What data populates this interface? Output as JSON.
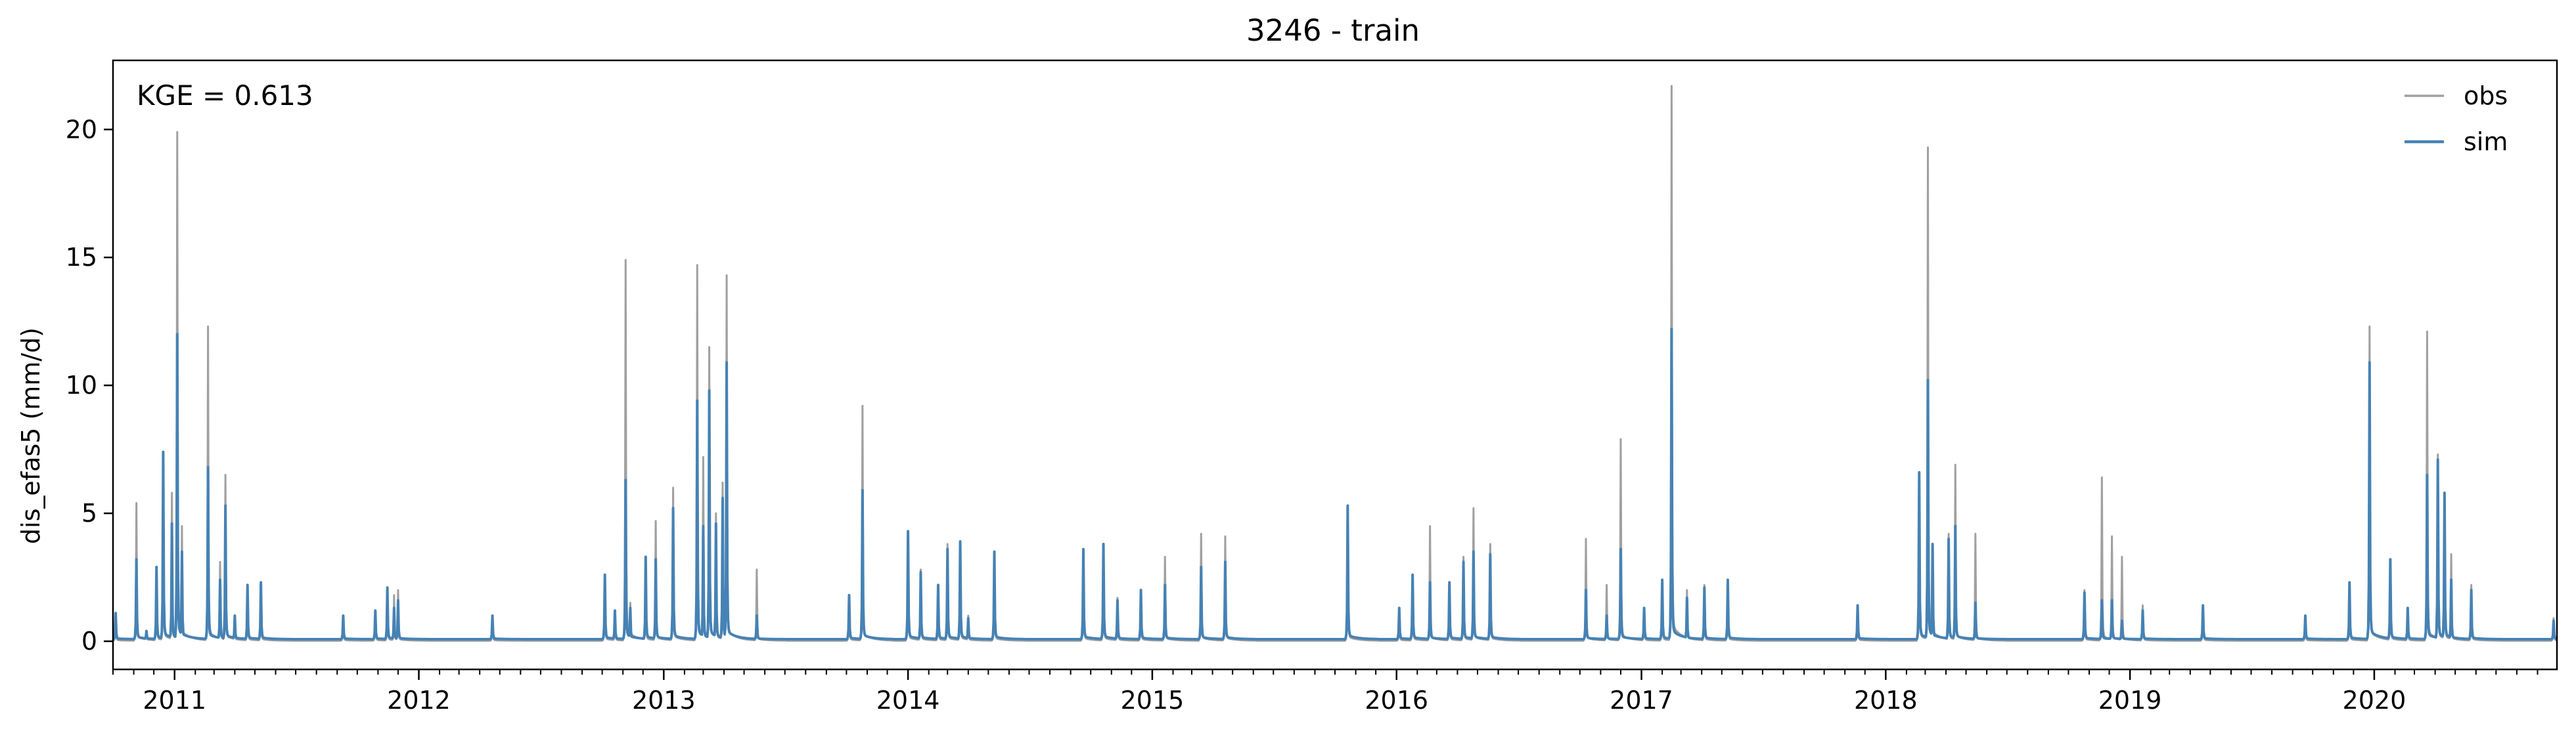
{
  "chart_data": {
    "type": "line",
    "title": "3246 - train",
    "xlabel": "",
    "ylabel": "dis_efas5 (mm/d)",
    "annotation": "KGE = 0.613",
    "x_range": [
      "2010-10-01",
      "2020-09-30"
    ],
    "ylim": [
      -1.1,
      22.7
    ],
    "yticks": [
      0,
      5,
      10,
      15,
      20
    ],
    "xticks": [
      "2011",
      "2012",
      "2013",
      "2014",
      "2015",
      "2016",
      "2017",
      "2018",
      "2019",
      "2020"
    ],
    "grid": false,
    "legend_position": "top-right",
    "colors": {
      "obs": "#a0a0a0",
      "sim": "#4682b4"
    },
    "baseline": {
      "obs": 0.02,
      "sim": 0.08
    },
    "series": [
      {
        "name": "obs",
        "peaks": [
          [
            "2010-10-05",
            0.9
          ],
          [
            "2010-11-05",
            5.4
          ],
          [
            "2010-11-20",
            0.4
          ],
          [
            "2010-12-05",
            2.8
          ],
          [
            "2010-12-15",
            7.3
          ],
          [
            "2010-12-28",
            5.8
          ],
          [
            "2011-01-05",
            19.9
          ],
          [
            "2011-01-12",
            4.5
          ],
          [
            "2011-02-20",
            12.3
          ],
          [
            "2011-03-10",
            3.1
          ],
          [
            "2011-03-18",
            6.5
          ],
          [
            "2011-04-01",
            0.9
          ],
          [
            "2011-04-20",
            2.1
          ],
          [
            "2011-05-10",
            2.2
          ],
          [
            "2011-09-10",
            0.9
          ],
          [
            "2011-10-28",
            1.1
          ],
          [
            "2011-11-15",
            1.9
          ],
          [
            "2011-11-25",
            1.8
          ],
          [
            "2011-12-01",
            2.0
          ],
          [
            "2012-04-20",
            0.8
          ],
          [
            "2012-10-05",
            2.5
          ],
          [
            "2012-10-20",
            1.1
          ],
          [
            "2012-11-05",
            14.9
          ],
          [
            "2012-11-12",
            1.5
          ],
          [
            "2012-12-05",
            2.8
          ],
          [
            "2012-12-20",
            4.7
          ],
          [
            "2013-01-15",
            6.0
          ],
          [
            "2013-02-20",
            14.7
          ],
          [
            "2013-03-01",
            7.2
          ],
          [
            "2013-03-10",
            11.5
          ],
          [
            "2013-03-20",
            5.0
          ],
          [
            "2013-03-30",
            6.2
          ],
          [
            "2013-04-05",
            14.3
          ],
          [
            "2013-05-20",
            2.8
          ],
          [
            "2013-10-05",
            1.8
          ],
          [
            "2013-10-25",
            9.2
          ],
          [
            "2014-01-01",
            4.2
          ],
          [
            "2014-01-20",
            2.8
          ],
          [
            "2014-02-15",
            2.0
          ],
          [
            "2014-03-01",
            3.8
          ],
          [
            "2014-03-20",
            3.9
          ],
          [
            "2014-04-01",
            1.0
          ],
          [
            "2014-05-10",
            3.4
          ],
          [
            "2014-09-20",
            3.5
          ],
          [
            "2014-10-20",
            3.7
          ],
          [
            "2014-11-10",
            1.7
          ],
          [
            "2014-12-15",
            2.0
          ],
          [
            "2015-01-20",
            3.3
          ],
          [
            "2015-03-15",
            4.2
          ],
          [
            "2015-04-20",
            4.1
          ],
          [
            "2015-10-20",
            5.2
          ],
          [
            "2016-01-05",
            1.2
          ],
          [
            "2016-01-25",
            2.5
          ],
          [
            "2016-02-20",
            4.5
          ],
          [
            "2016-03-20",
            2.2
          ],
          [
            "2016-04-10",
            3.3
          ],
          [
            "2016-04-25",
            5.2
          ],
          [
            "2016-05-20",
            3.8
          ],
          [
            "2016-10-10",
            4.0
          ],
          [
            "2016-11-10",
            2.2
          ],
          [
            "2016-12-01",
            7.9
          ],
          [
            "2017-01-05",
            1.2
          ],
          [
            "2017-02-01",
            2.0
          ],
          [
            "2017-02-15",
            21.7
          ],
          [
            "2017-03-10",
            2.0
          ],
          [
            "2017-04-05",
            2.2
          ],
          [
            "2017-05-10",
            2.4
          ],
          [
            "2017-11-20",
            1.3
          ],
          [
            "2018-02-20",
            6.5
          ],
          [
            "2018-03-05",
            19.3
          ],
          [
            "2018-03-12",
            3.5
          ],
          [
            "2018-04-05",
            4.2
          ],
          [
            "2018-04-15",
            6.9
          ],
          [
            "2018-05-15",
            4.2
          ],
          [
            "2018-10-25",
            2.0
          ],
          [
            "2018-11-20",
            6.4
          ],
          [
            "2018-12-05",
            4.1
          ],
          [
            "2018-12-20",
            3.3
          ],
          [
            "2019-01-20",
            1.4
          ],
          [
            "2019-04-20",
            1.3
          ],
          [
            "2019-09-20",
            0.9
          ],
          [
            "2019-11-25",
            2.1
          ],
          [
            "2019-12-25",
            12.3
          ],
          [
            "2020-01-25",
            3.2
          ],
          [
            "2020-02-20",
            1.2
          ],
          [
            "2020-03-20",
            12.1
          ],
          [
            "2020-04-05",
            7.3
          ],
          [
            "2020-04-15",
            5.4
          ],
          [
            "2020-04-25",
            3.4
          ],
          [
            "2020-05-25",
            2.2
          ],
          [
            "2020-09-25",
            0.9
          ]
        ]
      },
      {
        "name": "sim",
        "peaks": [
          [
            "2010-10-05",
            1.1
          ],
          [
            "2010-11-05",
            3.2
          ],
          [
            "2010-11-20",
            0.4
          ],
          [
            "2010-12-05",
            2.9
          ],
          [
            "2010-12-15",
            7.4
          ],
          [
            "2010-12-28",
            4.6
          ],
          [
            "2011-01-05",
            12.0
          ],
          [
            "2011-01-12",
            3.5
          ],
          [
            "2011-02-20",
            6.8
          ],
          [
            "2011-03-10",
            2.4
          ],
          [
            "2011-03-18",
            5.3
          ],
          [
            "2011-04-01",
            1.0
          ],
          [
            "2011-04-20",
            2.2
          ],
          [
            "2011-05-10",
            2.3
          ],
          [
            "2011-09-10",
            1.0
          ],
          [
            "2011-10-28",
            1.2
          ],
          [
            "2011-11-15",
            2.1
          ],
          [
            "2011-11-25",
            1.3
          ],
          [
            "2011-12-01",
            1.6
          ],
          [
            "2012-04-20",
            1.0
          ],
          [
            "2012-10-05",
            2.6
          ],
          [
            "2012-10-20",
            1.2
          ],
          [
            "2012-11-05",
            6.3
          ],
          [
            "2012-11-12",
            1.3
          ],
          [
            "2012-12-05",
            3.3
          ],
          [
            "2012-12-20",
            3.2
          ],
          [
            "2013-01-15",
            5.2
          ],
          [
            "2013-02-20",
            9.4
          ],
          [
            "2013-03-01",
            4.5
          ],
          [
            "2013-03-10",
            9.8
          ],
          [
            "2013-03-20",
            4.6
          ],
          [
            "2013-03-30",
            5.6
          ],
          [
            "2013-04-05",
            10.9
          ],
          [
            "2013-05-20",
            1.0
          ],
          [
            "2013-10-05",
            1.8
          ],
          [
            "2013-10-25",
            5.9
          ],
          [
            "2014-01-01",
            4.3
          ],
          [
            "2014-01-20",
            2.7
          ],
          [
            "2014-02-15",
            2.2
          ],
          [
            "2014-03-01",
            3.6
          ],
          [
            "2014-03-20",
            3.9
          ],
          [
            "2014-04-01",
            0.9
          ],
          [
            "2014-05-10",
            3.5
          ],
          [
            "2014-09-20",
            3.6
          ],
          [
            "2014-10-20",
            3.8
          ],
          [
            "2014-11-10",
            1.6
          ],
          [
            "2014-12-15",
            2.0
          ],
          [
            "2015-01-20",
            2.2
          ],
          [
            "2015-03-15",
            2.9
          ],
          [
            "2015-04-20",
            3.1
          ],
          [
            "2015-10-20",
            5.3
          ],
          [
            "2016-01-05",
            1.3
          ],
          [
            "2016-01-25",
            2.6
          ],
          [
            "2016-02-20",
            2.3
          ],
          [
            "2016-03-20",
            2.3
          ],
          [
            "2016-04-10",
            3.1
          ],
          [
            "2016-04-25",
            3.5
          ],
          [
            "2016-05-20",
            3.4
          ],
          [
            "2016-10-10",
            2.0
          ],
          [
            "2016-11-10",
            1.0
          ],
          [
            "2016-12-01",
            3.6
          ],
          [
            "2017-01-05",
            1.3
          ],
          [
            "2017-02-01",
            2.4
          ],
          [
            "2017-02-15",
            12.2
          ],
          [
            "2017-03-10",
            1.7
          ],
          [
            "2017-04-05",
            2.1
          ],
          [
            "2017-05-10",
            2.4
          ],
          [
            "2017-11-20",
            1.4
          ],
          [
            "2018-02-20",
            6.6
          ],
          [
            "2018-03-05",
            10.2
          ],
          [
            "2018-03-12",
            3.8
          ],
          [
            "2018-04-05",
            4.0
          ],
          [
            "2018-04-15",
            4.5
          ],
          [
            "2018-05-15",
            1.5
          ],
          [
            "2018-10-25",
            1.9
          ],
          [
            "2018-11-20",
            1.6
          ],
          [
            "2018-12-05",
            1.6
          ],
          [
            "2018-12-20",
            0.8
          ],
          [
            "2019-01-20",
            1.2
          ],
          [
            "2019-04-20",
            1.4
          ],
          [
            "2019-09-20",
            1.0
          ],
          [
            "2019-11-25",
            2.3
          ],
          [
            "2019-12-25",
            10.9
          ],
          [
            "2020-01-25",
            3.2
          ],
          [
            "2020-02-20",
            1.3
          ],
          [
            "2020-03-20",
            6.5
          ],
          [
            "2020-04-05",
            7.1
          ],
          [
            "2020-04-15",
            5.8
          ],
          [
            "2020-04-25",
            2.4
          ],
          [
            "2020-05-25",
            2.0
          ],
          [
            "2020-09-25",
            0.8
          ]
        ]
      }
    ]
  }
}
